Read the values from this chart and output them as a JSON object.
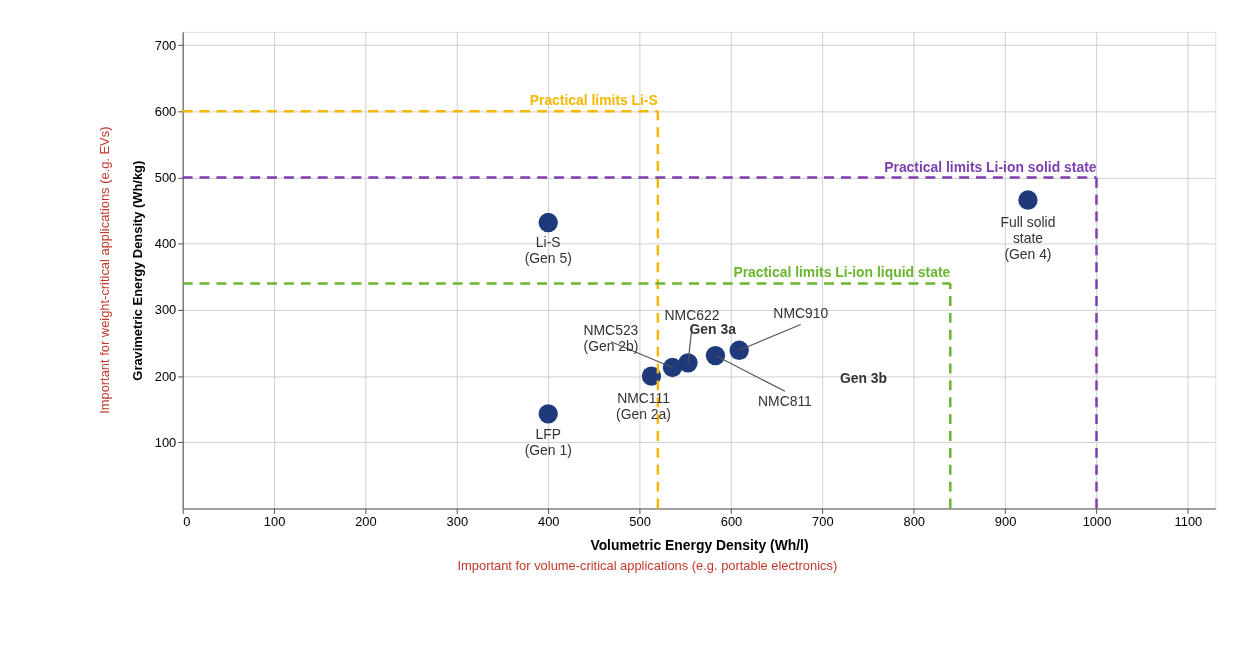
{
  "chart_data": {
    "type": "scatter",
    "xlabel": "Volumetric Energy Density (Wh/l)",
    "ylabel": "Gravimetric Energy Density (Wh/kg)",
    "x": [
      400,
      400,
      513,
      536,
      553,
      583,
      609,
      925
    ],
    "series": [
      {
        "color": "#1f3a7a",
        "values": [
          432,
          143,
          200,
          213,
          220,
          231,
          239,
          466
        ]
      }
    ],
    "marker": "circle",
    "xlim": [
      0,
      1130
    ],
    "ylim": [
      0,
      720
    ],
    "xticks": [
      0,
      100,
      200,
      300,
      400,
      500,
      600,
      700,
      800,
      900,
      1000,
      1100
    ],
    "yticks": [
      100,
      200,
      300,
      400,
      500,
      600,
      700
    ],
    "grid": true,
    "ref_lines": [
      {
        "axis": "y",
        "value": 600,
        "label": "Practical limits Li-S",
        "color": "#f5b800",
        "line_style": "dashed"
      },
      {
        "axis": "x",
        "value": 520,
        "label": null,
        "color": "#f5b800",
        "line_style": "dashed"
      },
      {
        "axis": "y",
        "value": 500,
        "label": "Practical limits Li-ion solid state",
        "color": "#7b3fb0",
        "line_style": "dashed"
      },
      {
        "axis": "x",
        "value": 1000,
        "label": null,
        "color": "#7b3fb0",
        "line_style": "dashed"
      },
      {
        "axis": "y",
        "value": 340,
        "label": "Practical limits Li-ion liquid state",
        "color": "#6ab630",
        "line_style": "dashed"
      },
      {
        "axis": "x",
        "value": 840,
        "label": null,
        "color": "#6ab630",
        "line_style": "dashed"
      }
    ],
    "annotations": [
      "Important for weight-critical applications (e.g. EVs)",
      "Important for volume-critical applications (e.g. portable electronics)",
      {
        "text": "Li-S\n(Gen 5)",
        "x": 400,
        "y": 432
      },
      {
        "text": "LFP\n(Gen 1)",
        "x": 400,
        "y": 143
      },
      {
        "text": "NMC111\n(Gen 2a)",
        "x": 513,
        "y": 200
      },
      {
        "text": "NMC523\n(Gen 2b)",
        "x": 536,
        "y": 213
      },
      {
        "text": "NMC622",
        "x": 553,
        "y": 220
      },
      {
        "text": "NMC811",
        "x": 583,
        "y": 231
      },
      {
        "text": "NMC910",
        "x": 609,
        "y": 239
      },
      {
        "text": "Full solid\nstate\n(Gen 4)",
        "x": 925,
        "y": 466
      },
      "Gen 3a",
      "Gen 3b"
    ]
  }
}
